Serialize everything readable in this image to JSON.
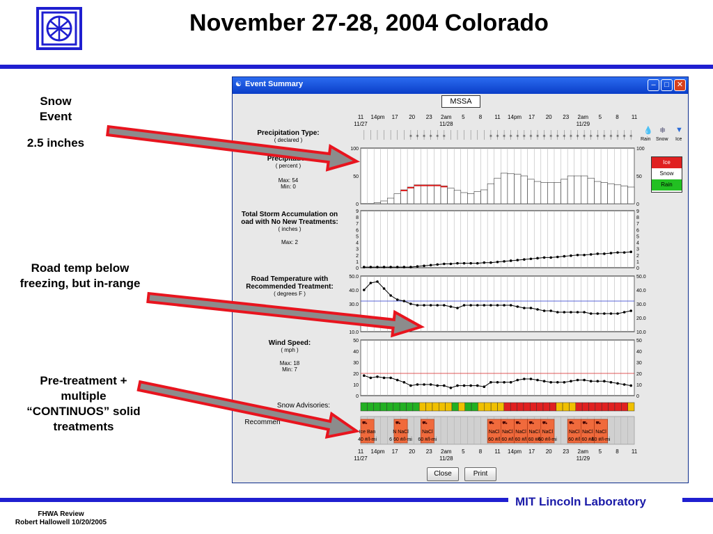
{
  "slide": {
    "title": "November 27-28, 2004 Colorado",
    "footer_left_1": "FHWA Review",
    "footer_left_2": "Robert Hallowell 10/20/2005",
    "footer_right": "MIT Lincoln Laboratory"
  },
  "notes": {
    "snow_event": "Snow Event",
    "snow_amount": "2.5 inches",
    "road_temp": "Road temp below freezing, but in-range",
    "pretreatment": "Pre-treatment + multiple “CONTINUOS” solid treatments"
  },
  "window": {
    "title": "Event Summary",
    "station": "MSSA",
    "close_label": "Close",
    "print_label": "Print"
  },
  "time_axis": {
    "ticks": [
      "11",
      "14pm",
      "17",
      "20",
      "23",
      "2am",
      "5",
      "8",
      "11",
      "14pm",
      "17",
      "20",
      "23",
      "2am",
      "5",
      "8",
      "11"
    ],
    "dates": [
      "11/27",
      "11/28",
      "11/29"
    ]
  },
  "panels": {
    "precip_type": {
      "label": "Precipitation Type:",
      "sub": "( declared )",
      "legend": [
        "Rain",
        "Snow",
        "Ice"
      ]
    },
    "precip_prob": {
      "label": "Precipitation",
      "sub": "( percent )",
      "max": "Max: 54",
      "min": "Min: 0",
      "legend": [
        "Ice",
        "Snow",
        "Rain"
      ]
    },
    "accum": {
      "label1": "Total Storm Accumulation on",
      "label2": "oad with No New Treatments:",
      "sub": "( inches )",
      "max": "Max: 2"
    },
    "road_temp": {
      "label1": "Road Temperature with",
      "label2": "Recommended Treatment:",
      "sub": "( degrees F )"
    },
    "wind": {
      "label": "Wind Speed:",
      "sub": "( mph )",
      "max": "Max: 18",
      "min": "Min: 7"
    },
    "advisories": {
      "label": "Snow Advisories:"
    },
    "recommend": {
      "label": "Recommen"
    }
  },
  "colors": {
    "accent": "#1f1fd0",
    "arrow_fill": "#8c8c8c",
    "arrow_edge": "#e8141e",
    "treatment": "#f06a3c",
    "adv_green": "#22b022",
    "adv_yellow": "#f0c000",
    "adv_red": "#e02020",
    "ice": "#e02020",
    "rain": "#22c022"
  },
  "chart_data": [
    {
      "type": "bar",
      "title": "Precipitation",
      "ylim": [
        0,
        100
      ],
      "yticks": [
        "100",
        "50",
        "0"
      ],
      "values": [
        0,
        0,
        2,
        5,
        10,
        18,
        25,
        30,
        34,
        34,
        34,
        34,
        32,
        28,
        24,
        20,
        18,
        22,
        25,
        36,
        46,
        55,
        54,
        53,
        50,
        44,
        40,
        38,
        38,
        38,
        44,
        50,
        50,
        50,
        46,
        40,
        38,
        36,
        34,
        32,
        30
      ],
      "series_type": [
        0,
        0,
        0,
        0,
        0,
        0,
        1,
        1,
        1,
        1,
        1,
        1,
        1,
        0,
        0,
        0,
        0,
        0,
        0,
        0,
        0,
        0,
        0,
        0,
        0,
        0,
        0,
        0,
        0,
        0,
        0,
        0,
        0,
        0,
        0,
        0,
        0,
        0,
        0,
        0,
        0
      ]
    },
    {
      "type": "line",
      "title": "Total Storm Accumulation on oad with No New Treatments:",
      "ylim": [
        0,
        9
      ],
      "yticks": [
        "9",
        "8",
        "7",
        "6",
        "5",
        "4",
        "3",
        "2",
        "1",
        "0"
      ],
      "values": [
        0.1,
        0.1,
        0.1,
        0.1,
        0.1,
        0.1,
        0.1,
        0.1,
        0.2,
        0.3,
        0.4,
        0.5,
        0.6,
        0.6,
        0.7,
        0.7,
        0.7,
        0.7,
        0.8,
        0.8,
        0.9,
        1.0,
        1.1,
        1.2,
        1.3,
        1.4,
        1.5,
        1.6,
        1.6,
        1.7,
        1.8,
        1.9,
        2.0,
        2.0,
        2.1,
        2.2,
        2.2,
        2.3,
        2.4,
        2.4,
        2.5
      ]
    },
    {
      "type": "line",
      "title": "Road Temperature with Recommended Treatment:",
      "ylim": [
        10,
        50
      ],
      "yticks": [
        "50.0",
        "40.0",
        "30.0",
        "20.0",
        "10.0"
      ],
      "threshold": 32,
      "values": [
        40,
        45,
        46,
        41,
        36,
        33,
        32,
        30,
        29,
        29,
        29,
        29,
        29,
        28,
        27,
        29,
        29,
        29,
        29,
        29,
        29,
        29,
        29,
        28,
        27,
        27,
        26,
        25,
        25,
        24,
        24,
        24,
        24,
        24,
        23,
        23,
        23,
        23,
        23,
        24,
        25
      ]
    },
    {
      "type": "line",
      "title": "Wind Speed:",
      "ylim": [
        0,
        50
      ],
      "yticks": [
        "50",
        "40",
        "30",
        "20",
        "10",
        "0"
      ],
      "threshold": 20,
      "values": [
        18,
        16,
        17,
        16,
        16,
        14,
        12,
        9,
        10,
        10,
        10,
        9,
        9,
        7,
        9,
        9,
        9,
        9,
        8,
        12,
        12,
        12,
        12,
        14,
        15,
        15,
        14,
        13,
        12,
        12,
        12,
        13,
        14,
        14,
        13,
        13,
        13,
        12,
        11,
        10,
        9
      ]
    }
  ],
  "advisory_blocks": [
    "g",
    "g",
    "g",
    "g",
    "g",
    "g",
    "g",
    "g",
    "g",
    "y",
    "y",
    "y",
    "y",
    "y",
    "g",
    "y",
    "g",
    "g",
    "y",
    "y",
    "y",
    "y",
    "r",
    "r",
    "r",
    "r",
    "r",
    "r",
    "r",
    "r",
    "y",
    "y",
    "y",
    "r",
    "r",
    "r",
    "r",
    "r",
    "r",
    "r",
    "r",
    "y"
  ],
  "treatments": [
    {
      "col": 0,
      "span": 2,
      "top": "Ice Ban",
      "bottom": "40 #/l-mi"
    },
    {
      "col": 5,
      "span": 2,
      "top": "N NaCl",
      "bottom": "6 60 #/l-mi"
    },
    {
      "col": 9,
      "span": 2,
      "top": "NaCl",
      "bottom": "60 #/l-mi"
    },
    {
      "col": 19,
      "span": 2,
      "top": "NaCl",
      "bottom": "60 #/l"
    },
    {
      "col": 21,
      "span": 2,
      "top": "NaCl",
      "bottom": "60 #/l"
    },
    {
      "col": 23,
      "span": 2,
      "top": "NaCl",
      "bottom": "60 #/l"
    },
    {
      "col": 25,
      "span": 2,
      "top": "NaCl",
      "bottom": "60 #/l"
    },
    {
      "col": 27,
      "span": 2,
      "top": "NaCl",
      "bottom": "60 #/l-mi"
    },
    {
      "col": 31,
      "span": 2,
      "top": "NaCl",
      "bottom": "60 #/l"
    },
    {
      "col": 33,
      "span": 2,
      "top": "NaCl",
      "bottom": "60 #/l"
    },
    {
      "col": 35,
      "span": 2,
      "top": "NaCl",
      "bottom": "60 #/l-mi"
    }
  ]
}
